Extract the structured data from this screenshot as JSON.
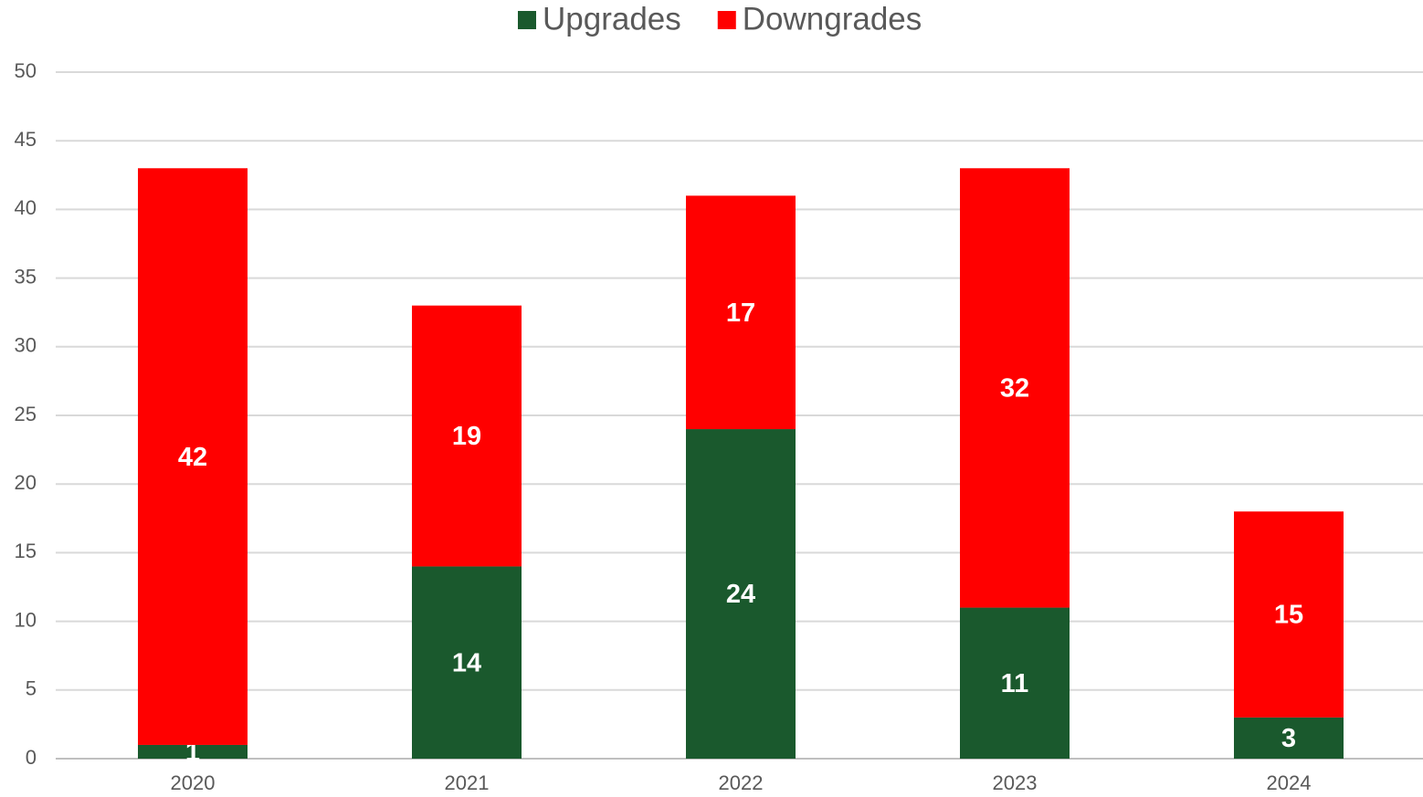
{
  "chart_data": {
    "type": "stacked_bar",
    "categories": [
      "2020",
      "2021",
      "2022",
      "2023",
      "2024"
    ],
    "series": [
      {
        "name": "Upgrades",
        "color": "#1a592d",
        "values": [
          1,
          14,
          24,
          11,
          3
        ]
      },
      {
        "name": "Downgrades",
        "color": "#ff0000",
        "values": [
          42,
          19,
          17,
          32,
          15
        ]
      }
    ],
    "ylim": [
      0,
      50
    ],
    "yticks": [
      0,
      5,
      10,
      15,
      20,
      25,
      30,
      35,
      40,
      45,
      50
    ],
    "grid": true,
    "legend": "top"
  }
}
